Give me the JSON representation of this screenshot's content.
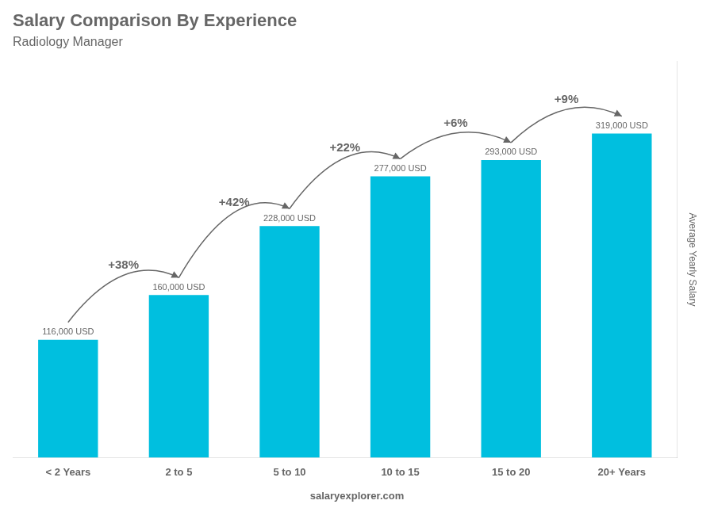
{
  "chart_data": {
    "type": "bar",
    "title": "Salary Comparison By Experience",
    "subtitle": "Radiology Manager",
    "ylabel": "Average Yearly Salary",
    "categories": [
      "< 2 Years",
      "2 to 5",
      "5 to 10",
      "10 to 15",
      "15 to 20",
      "20+ Years"
    ],
    "values": [
      116000,
      160000,
      228000,
      277000,
      293000,
      319000
    ],
    "value_labels": [
      "116,000 USD",
      "160,000 USD",
      "228,000 USD",
      "277,000 USD",
      "293,000 USD",
      "319,000 USD"
    ],
    "data_labels": true,
    "annotations": [
      "+38%",
      "+42%",
      "+22%",
      "+6%",
      "+9%"
    ],
    "footer": "salaryexplorer.com",
    "color": "#00BFDF",
    "ylim": [
      0,
      390000
    ],
    "grid": false,
    "tick_labels": "x"
  }
}
